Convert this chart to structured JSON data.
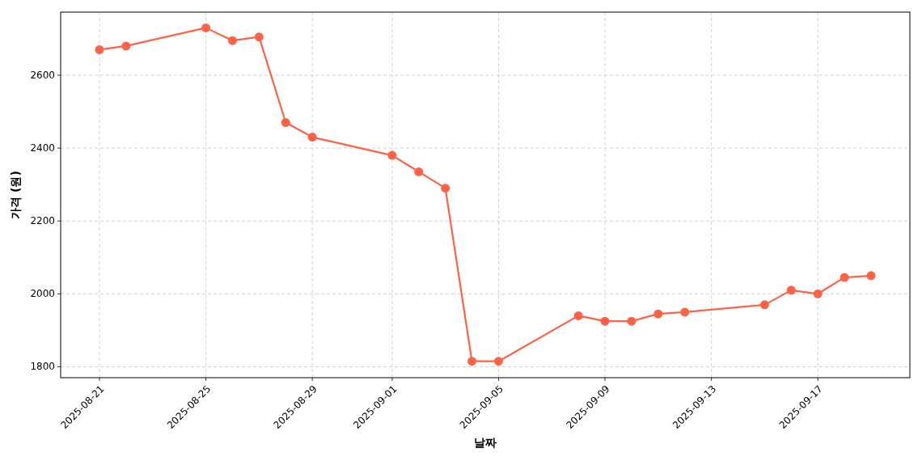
{
  "chart_data": {
    "type": "line",
    "xlabel": "날짜",
    "ylabel": "가격 (원)",
    "x": [
      "2025-08-21",
      "2025-08-22",
      "2025-08-25",
      "2025-08-26",
      "2025-08-27",
      "2025-08-28",
      "2025-08-29",
      "2025-09-01",
      "2025-09-02",
      "2025-09-03",
      "2025-09-04",
      "2025-09-05",
      "2025-09-08",
      "2025-09-09",
      "2025-09-10",
      "2025-09-11",
      "2025-09-12",
      "2025-09-15",
      "2025-09-16",
      "2025-09-17",
      "2025-09-18",
      "2025-09-19"
    ],
    "series": [
      {
        "color": "#ff6347",
        "values": [
          2670,
          2680,
          2730,
          2695,
          2705,
          2470,
          2430,
          2380,
          2335,
          2290,
          1815,
          1815,
          1940,
          1925,
          1925,
          1945,
          1950,
          1970,
          2010,
          2000,
          2045,
          2050
        ]
      }
    ],
    "xlim": [
      "2025-08-19T13:00",
      "2025-09-20T11:00"
    ],
    "xticks": [
      "2025-08-21",
      "2025-08-25",
      "2025-08-29",
      "2025-09-01",
      "2025-09-05",
      "2025-09-09",
      "2025-09-13",
      "2025-09-17"
    ],
    "ylim": [
      1770,
      2773
    ],
    "yticks": [
      1800,
      2000,
      2200,
      2400,
      2600
    ],
    "grid": true,
    "marker": "circle",
    "line_style": "solid"
  }
}
